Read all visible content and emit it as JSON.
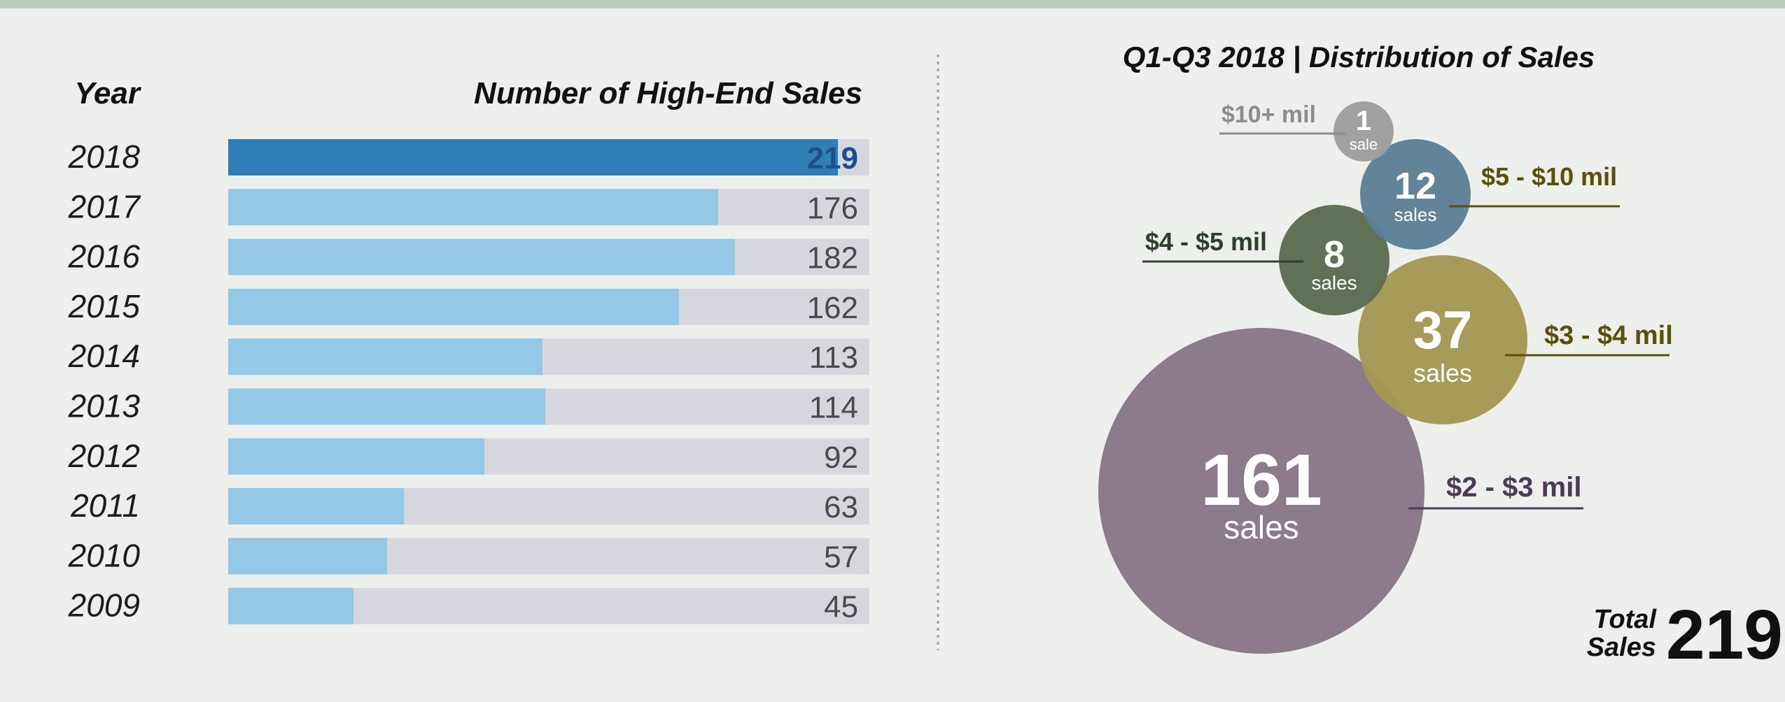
{
  "colors": {
    "background": "#ecefec",
    "top_band": "#b8cbbc",
    "bar_highlight": "#2f7eb8",
    "bar_normal": "#95c7e6",
    "bar_track": "#d6d7de",
    "year_highlight": "#3a82bd",
    "value_highlight": "#1f4e8a",
    "divider": "#9aa39c"
  },
  "chart_data": [
    {
      "type": "bar",
      "orientation": "horizontal",
      "xlabel": "Number of High-End Sales",
      "ylabel": "Year",
      "categories": [
        "2018",
        "2017",
        "2016",
        "2015",
        "2014",
        "2013",
        "2012",
        "2011",
        "2010",
        "2009"
      ],
      "values": [
        219,
        176,
        182,
        162,
        113,
        114,
        92,
        63,
        57,
        45
      ],
      "xlim": [
        0,
        250
      ],
      "highlight": "2018",
      "grid": false
    },
    {
      "type": "bubble",
      "title": "Q1-Q3 2018 | Distribution of Sales",
      "points": [
        {
          "label": "$2 - $3 mil",
          "value": 161,
          "unit": "sales",
          "color": "#877686",
          "label_color": "#4d3b55"
        },
        {
          "label": "$3 - $4 mil",
          "value": 37,
          "unit": "sales",
          "color": "#a39752",
          "label_color": "#5a4f0b"
        },
        {
          "label": "$4 - $5 mil",
          "value": 8,
          "unit": "sales",
          "color": "#5b6b50",
          "label_color": "#2f3f2d"
        },
        {
          "label": "$5 - $10 mil",
          "value": 12,
          "unit": "sales",
          "color": "#5b7f95",
          "label_color": "#5a4f0b"
        },
        {
          "label": "$10+ mil",
          "value": 1,
          "unit": "sale",
          "color": "#9c9e9d",
          "label_color": "#8b8c8c"
        }
      ],
      "total_label": [
        "Total",
        "Sales"
      ],
      "total_value": 219
    }
  ]
}
